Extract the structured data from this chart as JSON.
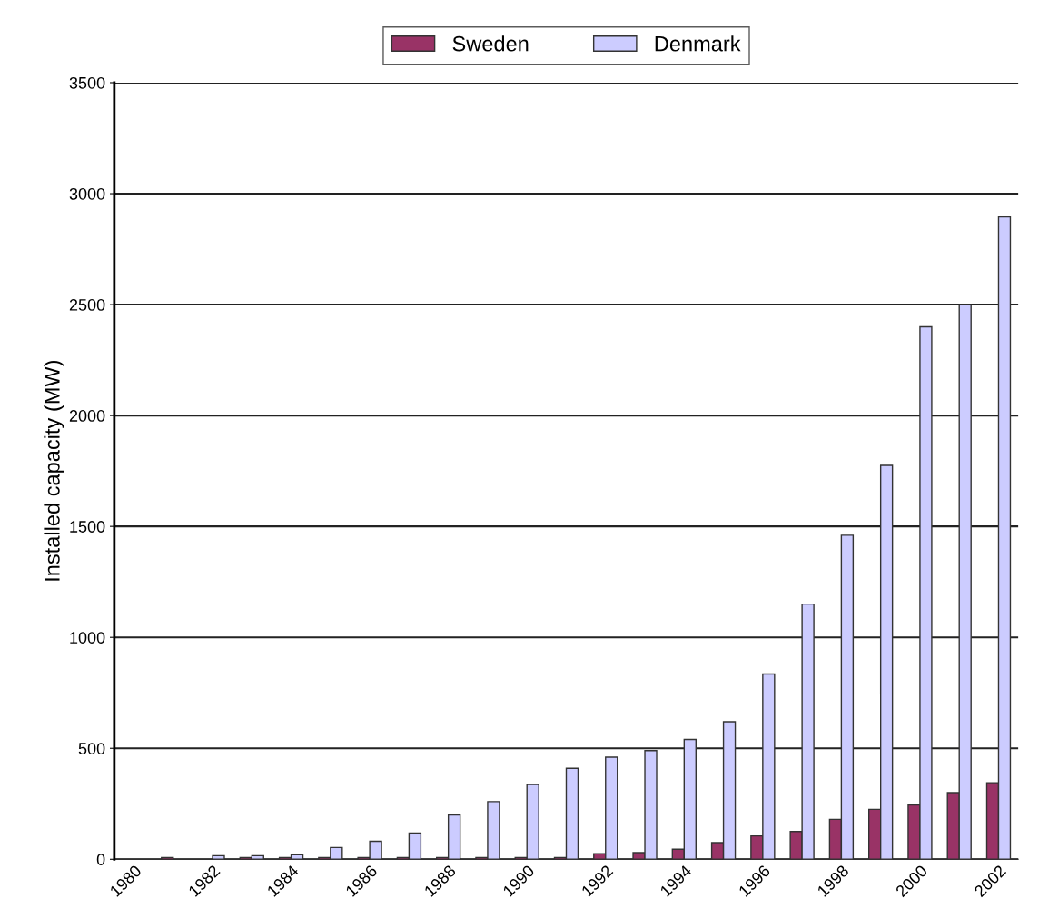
{
  "chart_data": {
    "type": "bar",
    "ylabel": "Installed capacity (MW)",
    "categories": [
      "1980",
      null,
      "1982",
      null,
      "1984",
      null,
      "1986",
      null,
      "1988",
      null,
      "1990",
      null,
      "1992",
      null,
      "1994",
      null,
      "1996",
      null,
      "1998",
      null,
      "2000",
      null,
      "2002"
    ],
    "series": [
      {
        "name": "Sweden",
        "color": "#993366",
        "values": [
          null,
          8,
          null,
          8,
          8,
          8,
          8,
          8,
          8,
          8,
          8,
          8,
          25,
          30,
          45,
          75,
          105,
          125,
          180,
          225,
          245,
          300,
          345
        ]
      },
      {
        "name": "Denmark",
        "color": "#ccccff",
        "values": [
          null,
          null,
          16,
          16,
          20,
          53,
          81,
          118,
          200,
          260,
          337,
          410,
          460,
          490,
          540,
          620,
          835,
          1150,
          1460,
          1775,
          2400,
          2500,
          2895
        ]
      }
    ],
    "ylim": [
      0,
      3500
    ],
    "yticks": [
      0,
      500,
      1000,
      1500,
      2000,
      2500,
      3000,
      3500
    ],
    "grid": "y",
    "legend": "top"
  }
}
